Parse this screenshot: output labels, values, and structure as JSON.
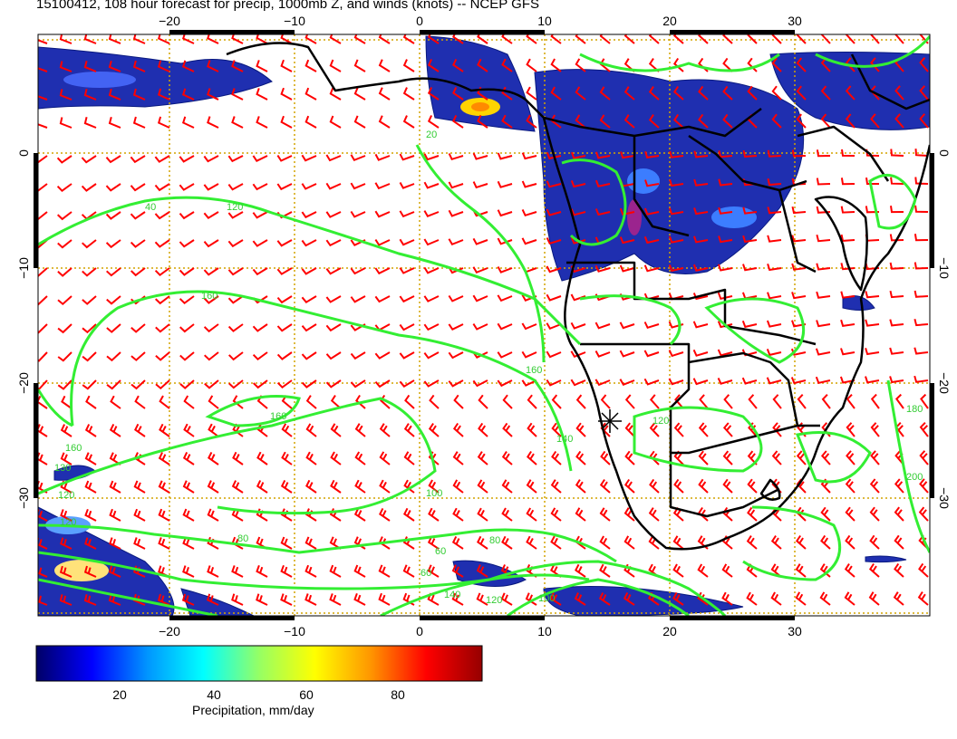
{
  "title": "15100412, 108 hour forecast for precip, 1000mb Z, and winds (knots) -- NCEP GFS",
  "axes": {
    "lon_ticks": [
      "−20",
      "−10",
      "0",
      "10",
      "20",
      "30"
    ],
    "lat_ticks": [
      "0",
      "−10",
      "−20",
      "−30"
    ]
  },
  "contour_labels": [
    "40",
    "120",
    "160",
    "160",
    "140",
    "160",
    "160",
    "130",
    "120",
    "120",
    "100",
    "80",
    "60",
    "140",
    "120",
    "100",
    "80",
    "60",
    "120",
    "180",
    "200",
    "20"
  ],
  "colorbar": {
    "label": "Precipitation, mm/day",
    "ticks": [
      "20",
      "40",
      "60",
      "80"
    ],
    "colors": [
      "#000066",
      "#0000ff",
      "#0096ff",
      "#00ffff",
      "#96ff64",
      "#ffff00",
      "#ff9600",
      "#ff0000",
      "#960000"
    ]
  },
  "colors": {
    "precip_low": "#1a2aa8",
    "contour": "#33ee33",
    "wind_barb": "#ff0000",
    "grid": "#ccaa00",
    "coast": "#000000"
  }
}
